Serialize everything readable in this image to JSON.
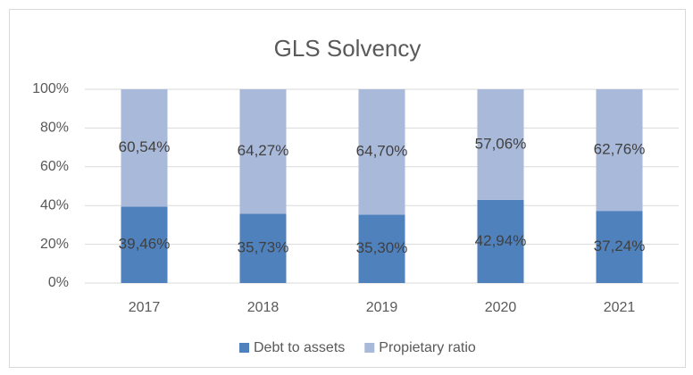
{
  "chart_data": {
    "type": "stacked_bar",
    "title": "GLS Solvency",
    "categories": [
      "2017",
      "2018",
      "2019",
      "2020",
      "2021"
    ],
    "series": [
      {
        "name": "Debt to assets",
        "color": "#4f81bd",
        "values": [
          39.46,
          35.73,
          35.3,
          42.94,
          37.24
        ],
        "value_labels": [
          "39,46%",
          "35,73%",
          "35,30%",
          "42,94%",
          "37,24%"
        ]
      },
      {
        "name": "Propietary ratio",
        "color": "#a9b9d9",
        "values": [
          60.54,
          64.27,
          64.7,
          57.06,
          62.76
        ],
        "value_labels": [
          "60,54%",
          "64,27%",
          "64,70%",
          "57,06%",
          "62,76%"
        ]
      }
    ],
    "ylim": [
      0,
      100
    ],
    "yticks": [
      {
        "value": 0,
        "label": "0%"
      },
      {
        "value": 20,
        "label": "20%"
      },
      {
        "value": 40,
        "label": "40%"
      },
      {
        "value": 60,
        "label": "60%"
      },
      {
        "value": 80,
        "label": "80%"
      },
      {
        "value": 100,
        "label": "100%"
      }
    ],
    "grid": true,
    "legend": "bottom"
  }
}
